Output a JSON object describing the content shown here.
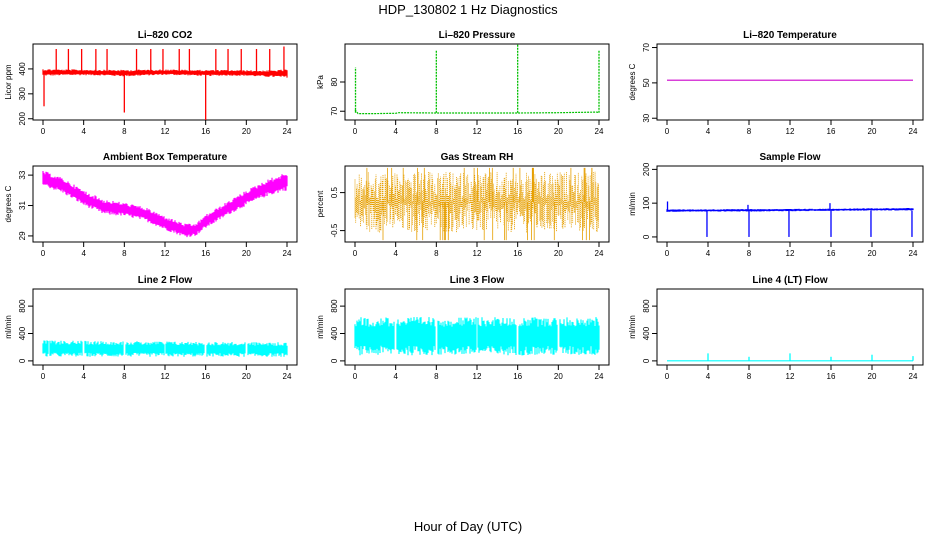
{
  "title": "HDP_130802 1 Hz Diagnostics",
  "xlabel": "Hour of Day (UTC)",
  "chart_data": [
    {
      "id": "li820-co2",
      "type": "line",
      "title": "Li–820 CO2",
      "ylabel": "Licor ppm",
      "color": "#ff0000",
      "xlim": [
        0,
        24
      ],
      "ylim": [
        195,
        500
      ],
      "yticks": [
        200,
        300,
        400
      ],
      "xticks": [
        0,
        4,
        8,
        12,
        16,
        20,
        24
      ],
      "series": [
        {
          "kind": "band",
          "x": [
            0,
            2,
            4,
            6,
            8,
            10,
            12,
            14,
            16,
            18,
            20,
            22,
            24
          ],
          "low": [
            372,
            374,
            375,
            373,
            370,
            373,
            376,
            374,
            371,
            373,
            372,
            368,
            365
          ],
          "high": [
            400,
            398,
            398,
            397,
            396,
            398,
            398,
            397,
            396,
            396,
            395,
            394,
            398
          ]
        }
      ],
      "spikes": [
        {
          "x": 0.1,
          "y": 250
        },
        {
          "x": 1.3,
          "y": 480
        },
        {
          "x": 2.5,
          "y": 480
        },
        {
          "x": 3.8,
          "y": 480
        },
        {
          "x": 5.2,
          "y": 480
        },
        {
          "x": 6.3,
          "y": 480
        },
        {
          "x": 8.0,
          "y": 225
        },
        {
          "x": 9.2,
          "y": 480
        },
        {
          "x": 10.6,
          "y": 480
        },
        {
          "x": 11.8,
          "y": 480
        },
        {
          "x": 13.4,
          "y": 480
        },
        {
          "x": 14.4,
          "y": 480
        },
        {
          "x": 16.0,
          "y": 195
        },
        {
          "x": 17.0,
          "y": 480
        },
        {
          "x": 18.2,
          "y": 480
        },
        {
          "x": 19.5,
          "y": 480
        },
        {
          "x": 21.0,
          "y": 480
        },
        {
          "x": 22.3,
          "y": 480
        },
        {
          "x": 23.7,
          "y": 490
        }
      ]
    },
    {
      "id": "li820-pressure",
      "type": "line",
      "title": "Li–820 Pressure",
      "ylabel": "kPa",
      "color": "#00c000",
      "xlim": [
        0,
        24
      ],
      "ylim": [
        67,
        93
      ],
      "yticks": [
        70,
        80
      ],
      "xticks": [
        0,
        4,
        8,
        12,
        16,
        20,
        24
      ],
      "series": [
        {
          "kind": "line",
          "x": [
            0,
            0.3,
            2,
            4,
            4.3,
            8,
            12,
            16,
            20,
            23.8,
            24
          ],
          "y": [
            70.5,
            69.2,
            69.2,
            69.3,
            69.5,
            69.4,
            69.4,
            69.4,
            69.5,
            69.7,
            69.5
          ]
        }
      ],
      "spikes": [
        {
          "x": 0.05,
          "y": 85
        },
        {
          "x": 8.0,
          "y": 91
        },
        {
          "x": 16.0,
          "y": 93
        },
        {
          "x": 24.0,
          "y": 91
        }
      ]
    },
    {
      "id": "li820-temperature",
      "type": "line",
      "title": "Li–820 Temperature",
      "ylabel": "degrees C",
      "color": "#cc00cc",
      "xlim": [
        0,
        24
      ],
      "ylim": [
        29,
        72
      ],
      "yticks": [
        30,
        50,
        70
      ],
      "xticks": [
        0,
        4,
        8,
        12,
        16,
        20,
        24
      ],
      "series": [
        {
          "kind": "line",
          "x": [
            0,
            24
          ],
          "y": [
            51.5,
            51.5
          ]
        }
      ],
      "spikes": []
    },
    {
      "id": "ambient-box-temperature",
      "type": "line",
      "title": "Ambient Box Temperature",
      "ylabel": "degrees C",
      "color": "#ff00ff",
      "xlim": [
        0,
        24
      ],
      "ylim": [
        28.6,
        33.6
      ],
      "yticks": [
        29,
        31,
        33
      ],
      "xticks": [
        0,
        4,
        8,
        12,
        16,
        20,
        24
      ],
      "series": [
        {
          "kind": "band",
          "x": [
            0,
            2,
            4,
            6,
            8,
            10,
            12,
            14,
            15,
            16,
            18,
            20,
            22,
            24
          ],
          "low": [
            32.3,
            31.8,
            31.0,
            30.4,
            30.3,
            30.0,
            29.4,
            28.9,
            29.0,
            29.5,
            30.3,
            31.0,
            31.6,
            32.0
          ],
          "high": [
            33.3,
            32.8,
            32.0,
            31.4,
            31.2,
            30.9,
            30.3,
            29.8,
            29.8,
            30.4,
            31.2,
            32.0,
            32.7,
            33.2
          ]
        }
      ],
      "spikes": []
    },
    {
      "id": "gas-stream-rh",
      "type": "line",
      "title": "Gas Stream RH",
      "ylabel": "percent",
      "color": "#e69f00",
      "xlim": [
        0,
        24
      ],
      "ylim": [
        -0.8,
        1.2
      ],
      "yticks": [
        -0.5,
        0.5
      ],
      "xticks": [
        0,
        4,
        8,
        12,
        16,
        20,
        24
      ],
      "series": [
        {
          "kind": "noise",
          "x": [
            0,
            24
          ],
          "low": -0.55,
          "high": 1.05,
          "extremes": [
            -0.75,
            1.15
          ]
        }
      ],
      "spikes": []
    },
    {
      "id": "sample-flow",
      "type": "line",
      "title": "Sample Flow",
      "ylabel": "ml/min",
      "color": "#0000ff",
      "xlim": [
        0,
        24
      ],
      "ylim": [
        -15,
        210
      ],
      "yticks": [
        0,
        100,
        200
      ],
      "xticks": [
        0,
        4,
        8,
        12,
        16,
        20,
        24
      ],
      "series": [
        {
          "kind": "band",
          "x": [
            0,
            4,
            8,
            12,
            16,
            20,
            24
          ],
          "low": [
            74,
            75,
            75,
            76,
            77,
            78,
            78
          ],
          "high": [
            82,
            82,
            83,
            83,
            84,
            85,
            86
          ]
        }
      ],
      "spikes": [
        {
          "x": 0.05,
          "y": 105
        },
        {
          "x": 3.9,
          "y": 0
        },
        {
          "x": 7.9,
          "y": 95
        },
        {
          "x": 8.0,
          "y": 0
        },
        {
          "x": 11.9,
          "y": 0
        },
        {
          "x": 15.9,
          "y": 100
        },
        {
          "x": 16.0,
          "y": 0
        },
        {
          "x": 19.9,
          "y": 0
        },
        {
          "x": 23.9,
          "y": 0
        }
      ]
    },
    {
      "id": "line2-flow",
      "type": "line",
      "title": "Line 2 Flow",
      "ylabel": "ml/min",
      "color": "#00ffff",
      "xlim": [
        0,
        24
      ],
      "ylim": [
        -60,
        1050
      ],
      "yticks": [
        0,
        400,
        800
      ],
      "xticks": [
        0,
        4,
        8,
        12,
        16,
        20,
        24
      ],
      "series": [
        {
          "kind": "band",
          "x": [
            0,
            24
          ],
          "low": [
            60,
            60
          ],
          "high": [
            300,
            270
          ]
        }
      ],
      "gaps": [
        0.6,
        4,
        8,
        12,
        16,
        20
      ],
      "spikes": []
    },
    {
      "id": "line3-flow",
      "type": "line",
      "title": "Line 3 Flow",
      "ylabel": "ml/min",
      "color": "#00ffff",
      "xlim": [
        0,
        24
      ],
      "ylim": [
        -60,
        1050
      ],
      "yticks": [
        0,
        400,
        800
      ],
      "xticks": [
        0,
        4,
        8,
        12,
        16,
        20,
        24
      ],
      "series": [
        {
          "kind": "band",
          "x": [
            0,
            24
          ],
          "low": [
            80,
            80
          ],
          "high": [
            640,
            640
          ]
        }
      ],
      "gaps": [
        4,
        8,
        12,
        16,
        20
      ],
      "spikes": []
    },
    {
      "id": "line4-lt-flow",
      "type": "line",
      "title": "Line 4 (LT) Flow",
      "ylabel": "ml/min",
      "color": "#00ffff",
      "xlim": [
        0,
        24
      ],
      "ylim": [
        -60,
        1050
      ],
      "yticks": [
        0,
        400,
        800
      ],
      "xticks": [
        0,
        4,
        8,
        12,
        16,
        20,
        24
      ],
      "series": [
        {
          "kind": "line",
          "x": [
            0,
            24
          ],
          "y": [
            2,
            2
          ]
        }
      ],
      "spikes": [
        {
          "x": 4,
          "y": 110
        },
        {
          "x": 8,
          "y": 60
        },
        {
          "x": 12,
          "y": 110
        },
        {
          "x": 16,
          "y": 60
        },
        {
          "x": 20,
          "y": 90
        },
        {
          "x": 24,
          "y": 70
        }
      ]
    }
  ]
}
